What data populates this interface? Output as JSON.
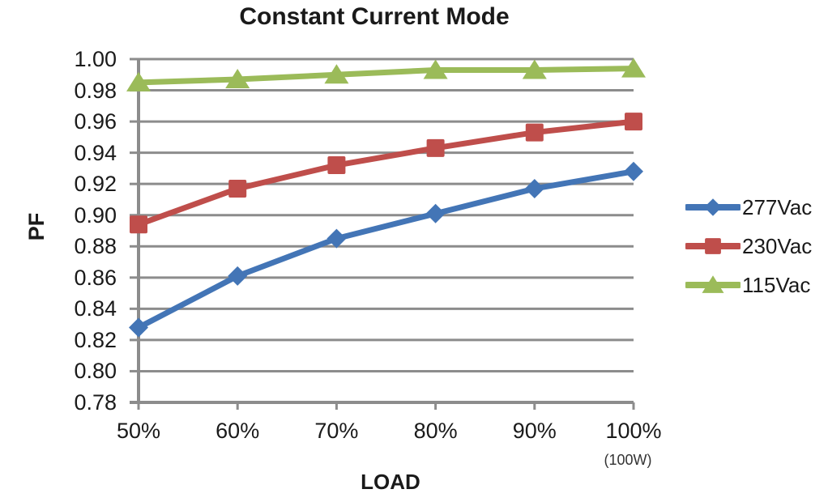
{
  "chart_data": {
    "type": "line",
    "title": "Constant Current Mode",
    "xlabel": "LOAD",
    "ylabel": "PF",
    "x_note": "(100W)",
    "categories": [
      "50%",
      "60%",
      "70%",
      "80%",
      "90%",
      "100%"
    ],
    "series": [
      {
        "name": "277Vac",
        "marker": "diamond",
        "color": "#4375B6",
        "values": [
          0.828,
          0.861,
          0.885,
          0.901,
          0.917,
          0.928
        ]
      },
      {
        "name": "230Vac",
        "marker": "square",
        "color": "#BF4E4B",
        "values": [
          0.894,
          0.917,
          0.932,
          0.943,
          0.953,
          0.96
        ]
      },
      {
        "name": "115Vac",
        "marker": "triangle",
        "color": "#9BBB59",
        "values": [
          0.985,
          0.987,
          0.99,
          0.993,
          0.993,
          0.994
        ]
      }
    ],
    "ylim": [
      0.78,
      1.0
    ],
    "y_tick_step": 0.02,
    "grid": true,
    "legend_position": "right",
    "axis_color": "#8c8c8c",
    "text_color": "#1a1a1a"
  }
}
